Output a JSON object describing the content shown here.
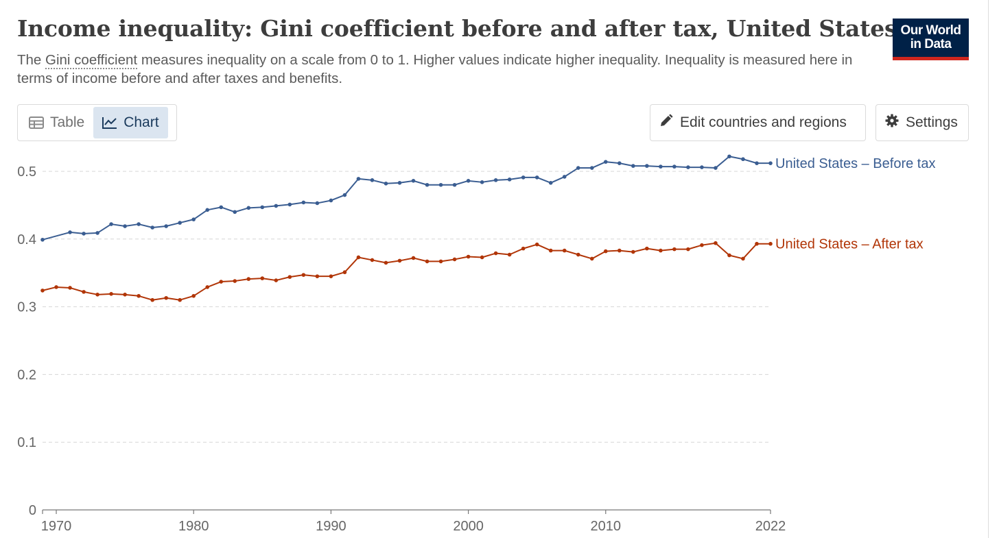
{
  "header": {
    "title": "Income inequality: Gini coefficient before and after tax, United States",
    "subtitle_prefix": "The ",
    "subtitle_link": "Gini coefficient",
    "subtitle_rest": " measures inequality on a scale from 0 to 1. Higher values indicate higher inequality. Inequality is measured here in terms of income before and after taxes and benefits."
  },
  "logo": {
    "line1": "Our World",
    "line2": "in Data"
  },
  "tabs": [
    {
      "label": "Table",
      "icon": "table-icon",
      "active": false
    },
    {
      "label": "Chart",
      "icon": "line-chart-icon",
      "active": true
    }
  ],
  "controls": {
    "edit_label": "Edit countries and regions",
    "settings_label": "Settings"
  },
  "chart_data": {
    "type": "line",
    "x_ticks": [
      "1970",
      "1980",
      "1990",
      "2000",
      "2010",
      "2022"
    ],
    "y_ticks": [
      "0",
      "0.1",
      "0.2",
      "0.3",
      "0.4",
      "0.5"
    ],
    "xlim": [
      1969,
      2022
    ],
    "ylim": [
      0,
      0.5
    ],
    "grid": "horizontal dashed",
    "series": [
      {
        "name": "United States – Before tax",
        "color": "#3a5d91",
        "x": [
          1969,
          1971,
          1972,
          1973,
          1974,
          1975,
          1976,
          1977,
          1978,
          1979,
          1980,
          1981,
          1982,
          1983,
          1984,
          1985,
          1986,
          1987,
          1988,
          1989,
          1990,
          1991,
          1992,
          1993,
          1994,
          1995,
          1996,
          1997,
          1998,
          1999,
          2000,
          2001,
          2002,
          2003,
          2004,
          2005,
          2006,
          2007,
          2008,
          2009,
          2010,
          2011,
          2012,
          2013,
          2014,
          2015,
          2016,
          2017,
          2018,
          2019,
          2020,
          2021,
          2022
        ],
        "y": [
          0.399,
          0.41,
          0.408,
          0.409,
          0.422,
          0.419,
          0.422,
          0.417,
          0.419,
          0.424,
          0.429,
          0.443,
          0.447,
          0.44,
          0.446,
          0.447,
          0.449,
          0.451,
          0.454,
          0.453,
          0.457,
          0.465,
          0.489,
          0.487,
          0.482,
          0.483,
          0.486,
          0.48,
          0.48,
          0.48,
          0.486,
          0.484,
          0.487,
          0.488,
          0.491,
          0.491,
          0.483,
          0.492,
          0.505,
          0.505,
          0.514,
          0.512,
          0.508,
          0.508,
          0.507,
          0.507,
          0.506,
          0.506,
          0.505,
          0.522,
          0.518,
          0.512,
          0.512
        ]
      },
      {
        "name": "United States – After tax",
        "color": "#b13507",
        "x": [
          1969,
          1970,
          1971,
          1972,
          1973,
          1974,
          1975,
          1976,
          1977,
          1978,
          1979,
          1980,
          1981,
          1982,
          1983,
          1984,
          1985,
          1986,
          1987,
          1988,
          1989,
          1990,
          1991,
          1992,
          1993,
          1994,
          1995,
          1996,
          1997,
          1998,
          1999,
          2000,
          2001,
          2002,
          2003,
          2004,
          2005,
          2006,
          2007,
          2008,
          2009,
          2010,
          2011,
          2012,
          2013,
          2014,
          2015,
          2016,
          2017,
          2018,
          2019,
          2020,
          2021,
          2022
        ],
        "y": [
          0.324,
          0.329,
          0.328,
          0.322,
          0.318,
          0.319,
          0.318,
          0.316,
          0.31,
          0.313,
          0.31,
          0.316,
          0.329,
          0.337,
          0.338,
          0.341,
          0.342,
          0.339,
          0.344,
          0.347,
          0.345,
          0.345,
          0.351,
          0.373,
          0.369,
          0.365,
          0.368,
          0.372,
          0.367,
          0.367,
          0.37,
          0.374,
          0.373,
          0.379,
          0.377,
          0.386,
          0.392,
          0.383,
          0.383,
          0.377,
          0.371,
          0.382,
          0.383,
          0.381,
          0.386,
          0.383,
          0.385,
          0.385,
          0.391,
          0.394,
          0.376,
          0.371,
          0.393,
          0.393
        ]
      }
    ]
  }
}
